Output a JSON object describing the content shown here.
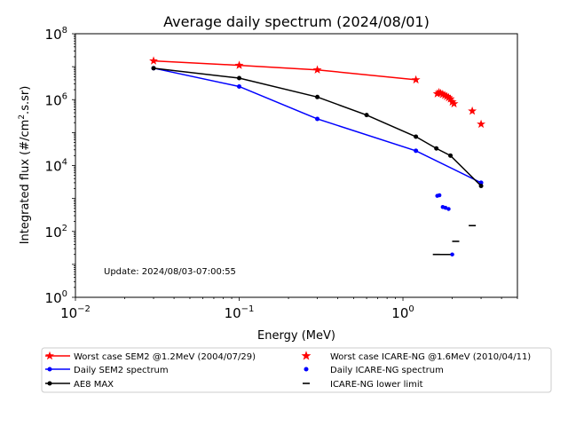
{
  "chart_data": {
    "type": "line",
    "title": "Average daily spectrum (2024/08/01)",
    "xlabel": "Energy (MeV)",
    "ylabel_main": "Integrated flux (#/cm",
    "ylabel_sup": "2",
    "ylabel_tail": ".s.sr)",
    "xscale": "log",
    "yscale": "log",
    "xlim": [
      0.01,
      5
    ],
    "ylim": [
      1,
      100000000
    ],
    "x_ticks": [
      {
        "value": 0.01,
        "base": "10",
        "exp": "−2"
      },
      {
        "value": 0.1,
        "base": "10",
        "exp": "−1"
      },
      {
        "value": 1,
        "base": "10",
        "exp": "0"
      }
    ],
    "y_ticks": [
      {
        "value": 1,
        "base": "10",
        "exp": "0"
      },
      {
        "value": 100,
        "base": "10",
        "exp": "2"
      },
      {
        "value": 10000,
        "base": "10",
        "exp": "4"
      },
      {
        "value": 1000000,
        "base": "10",
        "exp": "6"
      },
      {
        "value": 100000000,
        "base": "10",
        "exp": "8"
      }
    ],
    "grid": false,
    "annotation": "Update: 2024/08/03-07:00:55",
    "legend_placement": "below",
    "series": [
      {
        "name": "Worst case SEM2 @1.2MeV (2004/07/29)",
        "color": "#ff0000",
        "style": "line",
        "marker": "star",
        "x": [
          0.03,
          0.1,
          0.3,
          1.2
        ],
        "y": [
          15000000,
          11000000,
          8000000,
          4000000
        ]
      },
      {
        "name": "Daily SEM2 spectrum",
        "color": "#0000ff",
        "style": "line",
        "marker": "dot",
        "x": [
          0.03,
          0.1,
          0.3,
          1.2,
          3.0
        ],
        "y": [
          9000000,
          2500000,
          260000,
          28000,
          3000
        ]
      },
      {
        "name": "AE8 MAX",
        "color": "#000000",
        "style": "line",
        "marker": "dot",
        "x": [
          0.03,
          0.1,
          0.3,
          0.6,
          1.2,
          1.6,
          1.95,
          3.0
        ],
        "y": [
          9000000,
          4500000,
          1200000,
          340000,
          75000,
          33000,
          20000,
          2400
        ]
      },
      {
        "name": "Worst case ICARE-NG @1.6MeV (2010/04/11)",
        "color": "#ff0000",
        "style": "scatter",
        "marker": "star",
        "x": [
          1.62,
          1.66,
          1.7,
          1.75,
          1.8,
          1.85,
          1.9,
          1.95,
          2.0,
          2.05,
          2.65,
          3.0
        ],
        "y": [
          1500000,
          1650000,
          1550000,
          1450000,
          1350000,
          1250000,
          1150000,
          1050000,
          850000,
          750000,
          450000,
          180000
        ]
      },
      {
        "name": "Daily ICARE-NG spectrum",
        "color": "#0000ff",
        "style": "scatter",
        "marker": "dot",
        "x": [
          1.62,
          1.67,
          1.75,
          1.82,
          1.9,
          2.0
        ],
        "y": [
          1200,
          1250,
          550,
          520,
          480,
          20
        ]
      },
      {
        "name": "ICARE-NG lower limit",
        "color": "#000000",
        "style": "scatter",
        "marker": "hline",
        "x": [
          1.6,
          2.1,
          2.65
        ],
        "y": [
          20,
          50,
          150
        ]
      }
    ],
    "extra_segments": [
      {
        "color": "#000000",
        "x": [
          1.55,
          2.05
        ],
        "y": [
          20,
          20
        ]
      }
    ]
  }
}
